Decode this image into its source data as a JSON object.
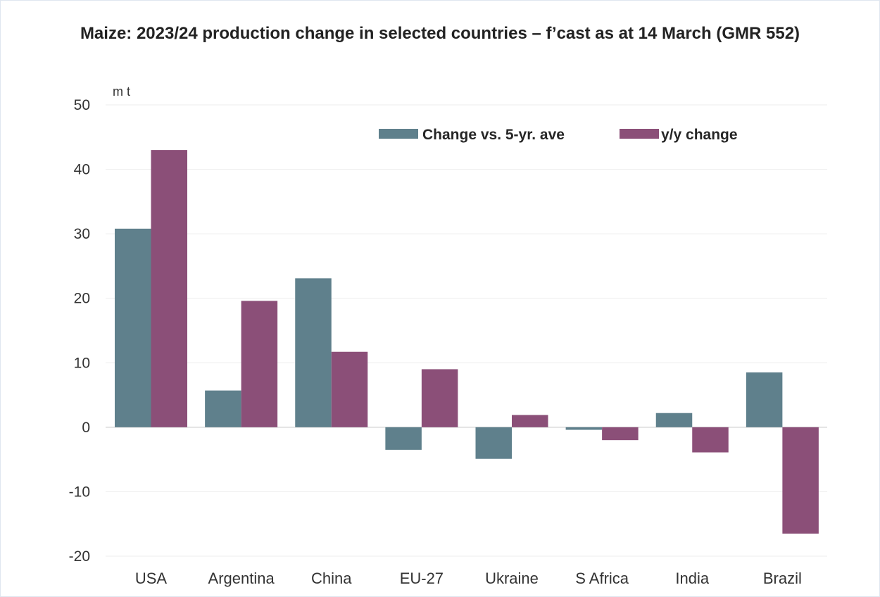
{
  "chart_data": {
    "type": "bar",
    "title": "Maize: 2023/24 production change in selected countries – f’cast as at 14 March (GMR 552)",
    "unit": "m t",
    "categories": [
      "USA",
      "Argentina",
      "China",
      "EU-27",
      "Ukraine",
      "S Africa",
      "India",
      "Brazil"
    ],
    "series": [
      {
        "name": "Change vs. 5-yr. ave",
        "color": "#5f808c",
        "values": [
          30.8,
          5.7,
          23.1,
          -3.5,
          -4.9,
          -0.4,
          2.2,
          8.5
        ]
      },
      {
        "name": "y/y change",
        "color": "#8b4f78",
        "values": [
          43.0,
          19.6,
          11.7,
          9.0,
          1.9,
          -2.0,
          -3.9,
          -16.5
        ]
      }
    ],
    "ylim": [
      -20,
      50
    ],
    "yticks": [
      "-20",
      "-10",
      "0",
      "10",
      "20",
      "30",
      "40",
      "50"
    ],
    "grid": true,
    "legend_position": "top-right"
  }
}
